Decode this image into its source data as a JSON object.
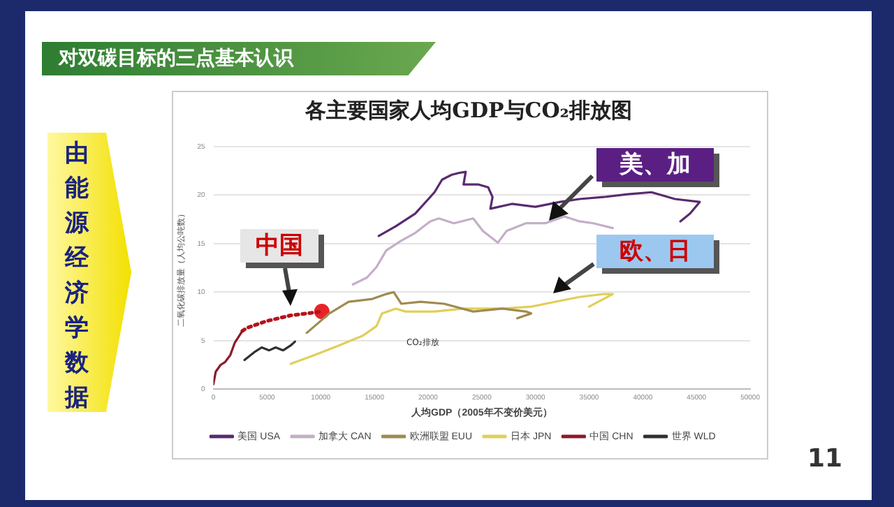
{
  "chart_data": {
    "type": "line",
    "title": "各主要国家人均GDP与CO₂排放图",
    "xlabel": "人均GDP（2005年不变价美元）",
    "ylabel": "二氧化碳排放量（人均公吨数）",
    "xlim": [
      0,
      50000
    ],
    "xticks": [
      0,
      5000,
      10000,
      15000,
      20000,
      25000,
      30000,
      35000,
      40000,
      45000,
      50000
    ],
    "ylim": [
      0,
      25
    ],
    "yticks": [
      0,
      5,
      10,
      15,
      20,
      25
    ],
    "grid": "y",
    "legend": "bottom",
    "marker": "none",
    "series": [
      {
        "name": "美国 USA",
        "color": "#5a2a6e",
        "x": [
          15400,
          17000,
          18800,
          20600,
          21300,
          22200,
          22900,
          23500,
          23300,
          24700,
          25600,
          26000,
          25800,
          27800,
          30000,
          32300,
          34100,
          36300,
          38600,
          40800,
          43000,
          45300,
          44400,
          43500
        ],
        "values": [
          15.8,
          16.8,
          18.1,
          20.3,
          21.6,
          22.1,
          22.3,
          22.4,
          21.1,
          21.1,
          20.8,
          19.8,
          18.6,
          19.1,
          18.8,
          19.3,
          19.6,
          19.8,
          20.1,
          20.3,
          19.6,
          19.3,
          18.1,
          17.3
        ]
      },
      {
        "name": "加拿大 CAN",
        "color": "#c4aec8",
        "x": [
          13000,
          14300,
          15200,
          16100,
          17500,
          18800,
          20200,
          21000,
          22400,
          24200,
          25100,
          26500,
          27300,
          29100,
          30900,
          32700,
          34100,
          35400,
          37200
        ],
        "values": [
          10.8,
          11.5,
          12.6,
          14.3,
          15.3,
          16.1,
          17.3,
          17.6,
          17.1,
          17.6,
          16.3,
          15.1,
          16.3,
          17.1,
          17.1,
          17.8,
          17.3,
          17.1,
          16.6
        ]
      },
      {
        "name": "欧洲联盟 EUU",
        "color": "#a08a50",
        "x": [
          8700,
          10800,
          12600,
          14800,
          16100,
          16800,
          17500,
          19300,
          21500,
          24200,
          26900,
          29100,
          29600,
          28300
        ],
        "values": [
          5.8,
          7.8,
          9.0,
          9.3,
          9.8,
          10.0,
          8.8,
          9.0,
          8.8,
          8.0,
          8.3,
          8.0,
          7.8,
          7.3
        ]
      },
      {
        "name": "日本 JPN",
        "color": "#e0cf5a",
        "x": [
          7200,
          9400,
          11700,
          13900,
          15200,
          15700,
          17000,
          17900,
          20600,
          23300,
          26900,
          29600,
          31800,
          34100,
          36300,
          37200,
          35000
        ],
        "values": [
          2.6,
          3.5,
          4.5,
          5.5,
          6.5,
          7.8,
          8.3,
          8.0,
          8.0,
          8.3,
          8.3,
          8.5,
          9.0,
          9.5,
          9.8,
          9.8,
          8.5
        ]
      },
      {
        "name": "中国 CHN",
        "color": "#8b1a2a",
        "x": [
          0,
          220,
          670,
          1100,
          1570,
          2000,
          2700
        ],
        "values": [
          0.5,
          1.8,
          2.5,
          2.8,
          3.5,
          4.8,
          6.0
        ]
      },
      {
        "name": "世界 WLD",
        "color": "#303030",
        "x": [
          2900,
          3800,
          4500,
          5200,
          5800,
          6500,
          7200,
          7600
        ],
        "values": [
          3.0,
          3.8,
          4.3,
          4.0,
          4.3,
          4.0,
          4.5,
          4.9
        ]
      },
      {
        "color": "#b5121b",
        "line_style": "dotted",
        "x": [
          2700,
          3100,
          4900,
          7200,
          10100
        ],
        "values": [
          6.0,
          6.3,
          7.0,
          7.6,
          8.0
        ]
      },
      {
        "type": "scatter",
        "color": "#e8242a",
        "marker": "circle",
        "x": [
          10100
        ],
        "values": [
          8.0
        ]
      }
    ],
    "annotations": [
      "对双碳目标的三点基本认识",
      "由能源经济学数据",
      "11",
      "CO₂排放",
      "美、加",
      "中国",
      "欧、日"
    ]
  }
}
